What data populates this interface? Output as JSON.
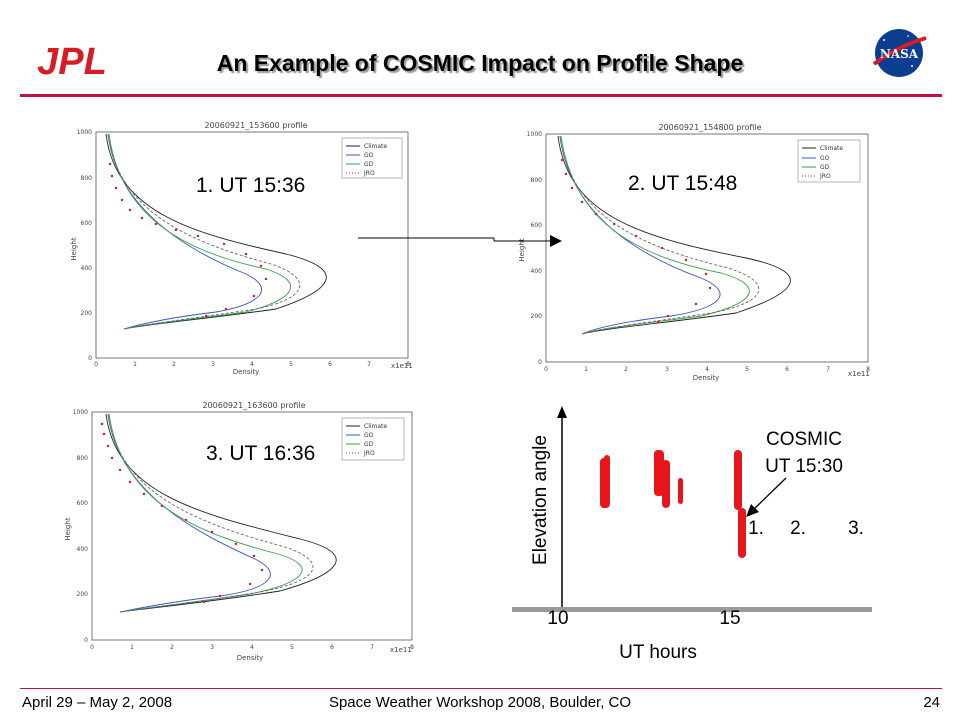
{
  "title": "An Example of COSMIC Impact on Profile Shape",
  "logos": {
    "left": "JPL",
    "right": "NASA"
  },
  "footer": {
    "left": "April 29 – May 2, 2008",
    "center": "Space Weather Workshop 2008, Boulder, CO",
    "right": "24"
  },
  "profile_plots": [
    {
      "plot_title": "20060921_153600 profile",
      "label": "1. UT 15:36"
    },
    {
      "plot_title": "20060921_154800 profile",
      "label": "2.  UT 15:48"
    },
    {
      "plot_title": "20060921_163600 profile",
      "label": "3. UT 16:36"
    }
  ],
  "profile_axes": {
    "xlabel": "Density",
    "ylabel": "Height",
    "x_multiplier": "x1e11",
    "x_ticks": [
      "0",
      "1",
      "2",
      "3",
      "4",
      "5",
      "6",
      "7",
      "8"
    ],
    "y_ticks": [
      "0",
      "200",
      "400",
      "600",
      "800",
      "1000"
    ]
  },
  "profile_legend": [
    "Climate",
    "GO",
    "GD",
    "JRO"
  ],
  "elevation_panel": {
    "ylabel": "Elevation angle",
    "xlabel": "UT hours",
    "x_ticks": [
      "10",
      "15"
    ],
    "annotation_line1": "COSMIC",
    "annotation_line2": "UT 15:30",
    "markers": [
      "1.",
      "2.",
      "3."
    ]
  },
  "colors": {
    "accent_rule": "#c0143c",
    "dots": "#e8151b",
    "jpl_red": "#d81c24",
    "nasa_blue": "#0b3d91"
  }
}
